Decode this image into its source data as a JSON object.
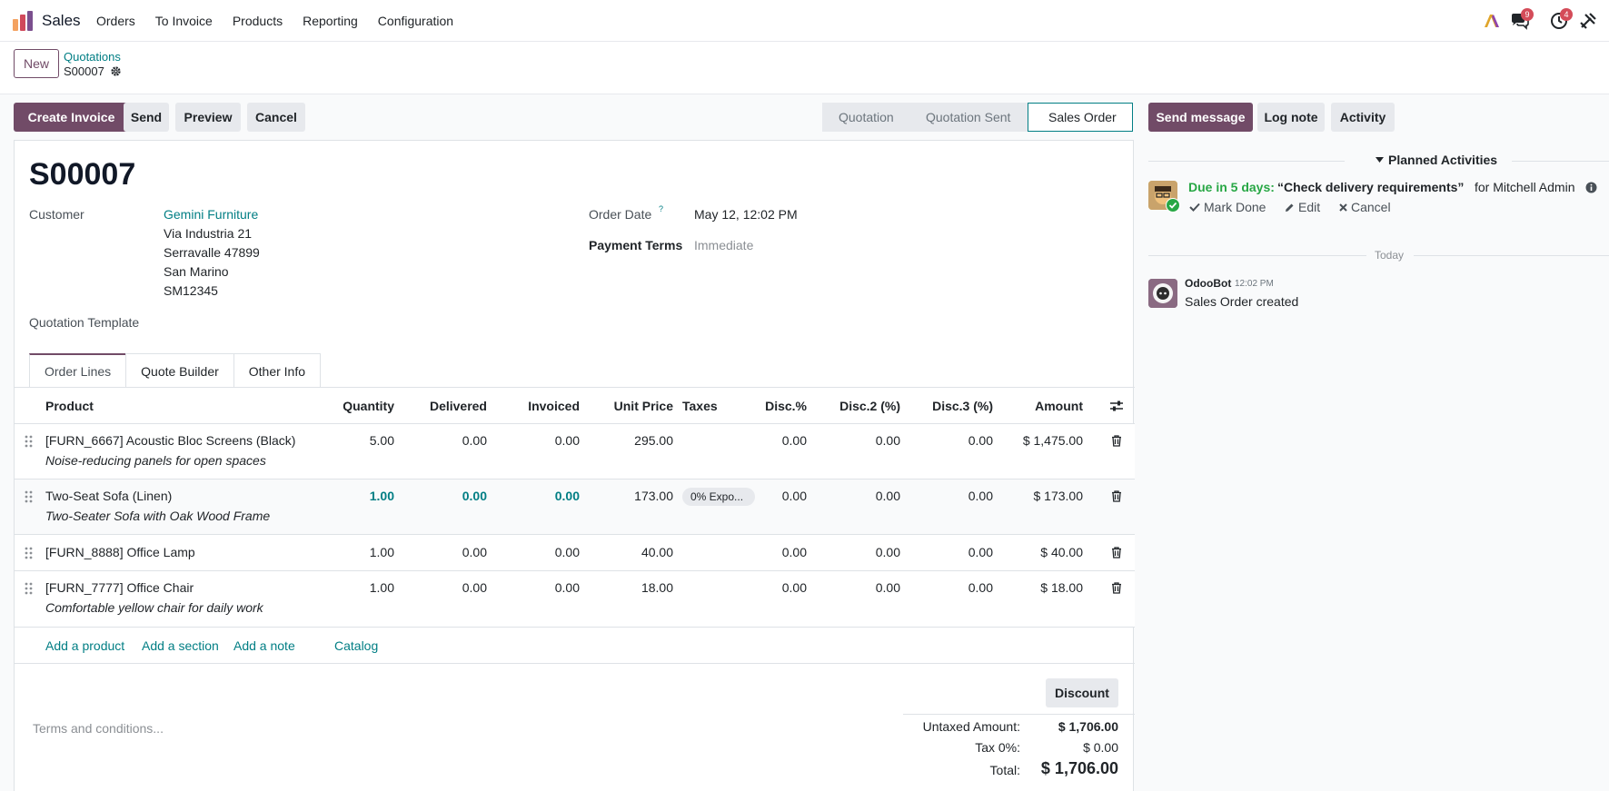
{
  "navbar": {
    "app_name": "Sales",
    "menu": [
      "Orders",
      "To Invoice",
      "Products",
      "Reporting",
      "Configuration"
    ],
    "messages_badge": "9",
    "activities_badge": "4"
  },
  "control": {
    "new_label": "New",
    "breadcrumb_parent": "Quotations",
    "breadcrumb_current": "S00007"
  },
  "actions": {
    "create_invoice": "Create Invoice",
    "send": "Send",
    "preview": "Preview",
    "cancel": "Cancel"
  },
  "statusbar": [
    "Quotation",
    "Quotation Sent",
    "Sales Order"
  ],
  "status_active": "Sales Order",
  "form": {
    "title": "S00007",
    "customer_label": "Customer",
    "customer_name": "Gemini Furniture",
    "address": [
      "Via Industria 21",
      "Serravalle 47899",
      "San Marino",
      "SM12345"
    ],
    "template_label": "Quotation Template",
    "order_date_label": "Order Date",
    "order_date_help": "?",
    "order_date": "May 12, 12:02 PM",
    "payment_terms_label": "Payment Terms",
    "payment_terms_placeholder": "Immediate"
  },
  "tabs": [
    "Order Lines",
    "Quote Builder",
    "Other Info"
  ],
  "table": {
    "headers": [
      "Product",
      "Quantity",
      "Delivered",
      "Invoiced",
      "Unit Price",
      "Taxes",
      "Disc.%",
      "Disc.2 (%)",
      "Disc.3 (%)",
      "Amount"
    ],
    "rows": [
      {
        "product": "[FURN_6667] Acoustic Bloc Screens (Black)",
        "description": "Noise-reducing panels for open spaces",
        "quantity": "5.00",
        "delivered": "0.00",
        "invoiced": "0.00",
        "unit_price": "295.00",
        "taxes": "",
        "disc": "0.00",
        "disc2": "0.00",
        "disc3": "0.00",
        "amount": "$ 1,475.00"
      },
      {
        "product": "Two-Seat Sofa (Linen)",
        "description": "Two-Seater Sofa with Oak Wood Frame",
        "quantity": "1.00",
        "delivered": "0.00",
        "invoiced": "0.00",
        "unit_price": "173.00",
        "taxes": "0% Expo...",
        "disc": "0.00",
        "disc2": "0.00",
        "disc3": "0.00",
        "amount": "$ 173.00"
      },
      {
        "product": "[FURN_8888] Office Lamp",
        "description": "",
        "quantity": "1.00",
        "delivered": "0.00",
        "invoiced": "0.00",
        "unit_price": "40.00",
        "taxes": "",
        "disc": "0.00",
        "disc2": "0.00",
        "disc3": "0.00",
        "amount": "$ 40.00"
      },
      {
        "product": "[FURN_7777] Office Chair",
        "description": "Comfortable yellow chair for daily work",
        "quantity": "1.00",
        "delivered": "0.00",
        "invoiced": "0.00",
        "unit_price": "18.00",
        "taxes": "",
        "disc": "0.00",
        "disc2": "0.00",
        "disc3": "0.00",
        "amount": "$ 18.00"
      }
    ],
    "add_links": [
      "Add a product",
      "Add a section",
      "Add a note",
      "Catalog"
    ]
  },
  "footer": {
    "discount_label": "Discount",
    "terms_placeholder": "Terms and conditions...",
    "untaxed_label": "Untaxed Amount:",
    "untaxed_value": "$ 1,706.00",
    "tax_label": "Tax 0%:",
    "tax_value": "$ 0.00",
    "total_label": "Total:",
    "total_value": "$ 1,706.00"
  },
  "chatter": {
    "send_message": "Send message",
    "log_note": "Log note",
    "activity": "Activity",
    "planned_title": "Planned Activities",
    "due_text": "Due in 5 days:",
    "activity_summary": "“Check delivery requirements”",
    "activity_for": "for Mitchell Admin",
    "mark_done": "Mark Done",
    "edit": "Edit",
    "cancel": "Cancel",
    "today_label": "Today",
    "message_author": "OdooBot",
    "message_time": "12:02 PM",
    "message_body": "Sales Order created"
  },
  "colors": {
    "brand": "#714b67",
    "link": "#017e84",
    "success": "#28a745"
  }
}
